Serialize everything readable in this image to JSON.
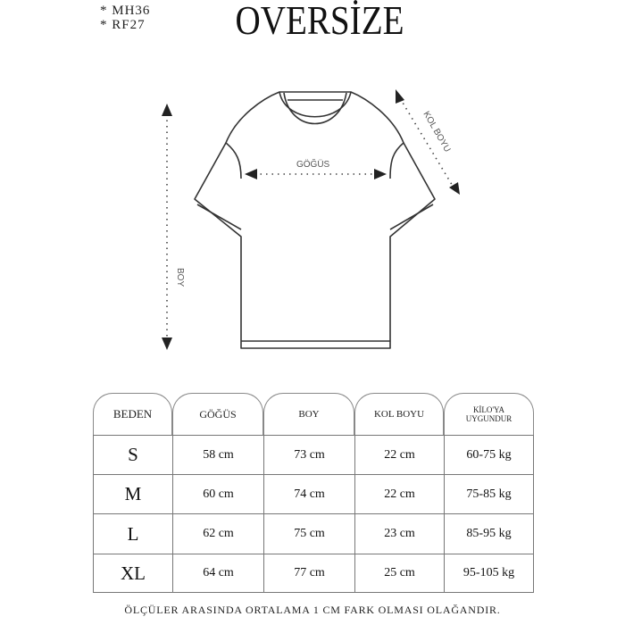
{
  "codes": [
    "* MH36",
    "* RF27"
  ],
  "title": "OVERSİZE",
  "diagram": {
    "chest_label": "GÖĞÜS",
    "length_label": "BOY",
    "sleeve_label": "KOL BOYU"
  },
  "table": {
    "headers": [
      "BEDEN",
      "GÖĞÜS",
      "BOY",
      "KOL BOYU",
      "KİLO'YA UYGUNDUR"
    ],
    "header_weight_line1": "KİLO'YA",
    "header_weight_line2": "UYGUNDUR",
    "rows": [
      [
        "S",
        "58 cm",
        "73 cm",
        "22  cm",
        "60-75 kg"
      ],
      [
        "M",
        "60 cm",
        "74 cm",
        "22 cm",
        "75-85 kg"
      ],
      [
        "L",
        "62 cm",
        "75 cm",
        "23 cm",
        "85-95 kg"
      ],
      [
        "XL",
        "64 cm",
        "77 cm",
        "25 cm",
        "95-105 kg"
      ]
    ]
  },
  "note": "ÖLÇÜLER ARASINDA ORTALAMA 1 CM FARK OLMASI OLAĞANDIR."
}
